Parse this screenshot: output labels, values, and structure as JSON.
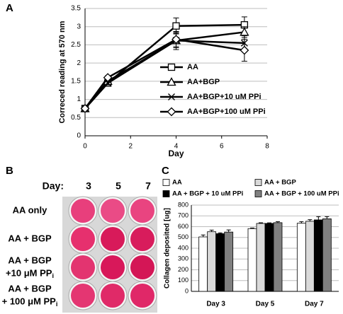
{
  "panel_B": {
    "panel_label": "B",
    "day_label": "Day:",
    "days": [
      "3",
      "5",
      "7"
    ],
    "rows": [
      {
        "lines": [
          "AA only"
        ]
      },
      {
        "lines": [
          "AA + BGP"
        ]
      },
      {
        "lines": [
          "AA + BGP",
          "+10 μM PP"
        ],
        "sub": "i"
      },
      {
        "lines": [
          "AA + BGP",
          "+ 100 μM PP"
        ],
        "sub": "i"
      }
    ]
  },
  "chart_data": [
    {
      "type": "line",
      "panel_label": "A",
      "y_label": "Correced reading at 570 nm",
      "x_label": "Day",
      "x": [
        0,
        1,
        4,
        7
      ],
      "xlim": [
        0,
        8
      ],
      "xticks": [
        0,
        2,
        4,
        6,
        8
      ],
      "ylim": [
        0,
        3.5
      ],
      "yticks": [
        0,
        0.5,
        1,
        1.5,
        2,
        2.5,
        3,
        3.5
      ],
      "grid": true,
      "legend": "right",
      "series": [
        {
          "name": "AA",
          "color": "#000000",
          "marker": "square",
          "values": [
            0.75,
            1.45,
            3.02,
            3.05
          ],
          "errors": [
            0.03,
            0.05,
            0.22,
            0.22
          ]
        },
        {
          "name": "AA+BGP",
          "color": "#000000",
          "marker": "triangle",
          "values": [
            0.75,
            1.5,
            2.62,
            2.85
          ],
          "errors": [
            0.03,
            0.05,
            0.2,
            0.15
          ]
        },
        {
          "name": "AA+BGP+10 uM PPi",
          "color": "#000000",
          "marker": "x",
          "values": [
            0.75,
            1.45,
            2.62,
            2.55
          ],
          "errors": [
            0.03,
            0.05,
            0.25,
            0.2
          ]
        },
        {
          "name": "AA+BGP+100 uM PPi",
          "color": "#000000",
          "marker": "diamond",
          "values": [
            0.75,
            1.6,
            2.65,
            2.35
          ],
          "errors": [
            0.03,
            0.05,
            0.2,
            0.3
          ]
        }
      ]
    },
    {
      "type": "bar",
      "panel_label": "C",
      "y_label": "Collagen deposited [ug]",
      "categories": [
        "Day 3",
        "Day 5",
        "Day 7"
      ],
      "ylim": [
        0,
        800
      ],
      "yticks": [
        0,
        100,
        200,
        300,
        400,
        500,
        600,
        700,
        800
      ],
      "grid": true,
      "legend": "top",
      "series": [
        {
          "name": "AA",
          "color": "#ffffff",
          "values": [
            505,
            582,
            632
          ],
          "errors": [
            18,
            6,
            15
          ]
        },
        {
          "name": "AA + BGP",
          "color": "#d9d9d9",
          "values": [
            553,
            630,
            650
          ],
          "errors": [
            15,
            6,
            15
          ]
        },
        {
          "name": "AA + BGP + 10 uM PPi",
          "color": "#000000",
          "values": [
            535,
            630,
            663
          ],
          "errors": [
            8,
            5,
            30
          ]
        },
        {
          "name": "AA + BGP + 100 uM PPi",
          "color": "#808080",
          "values": [
            550,
            637,
            673
          ],
          "errors": [
            20,
            10,
            20
          ]
        }
      ]
    }
  ]
}
